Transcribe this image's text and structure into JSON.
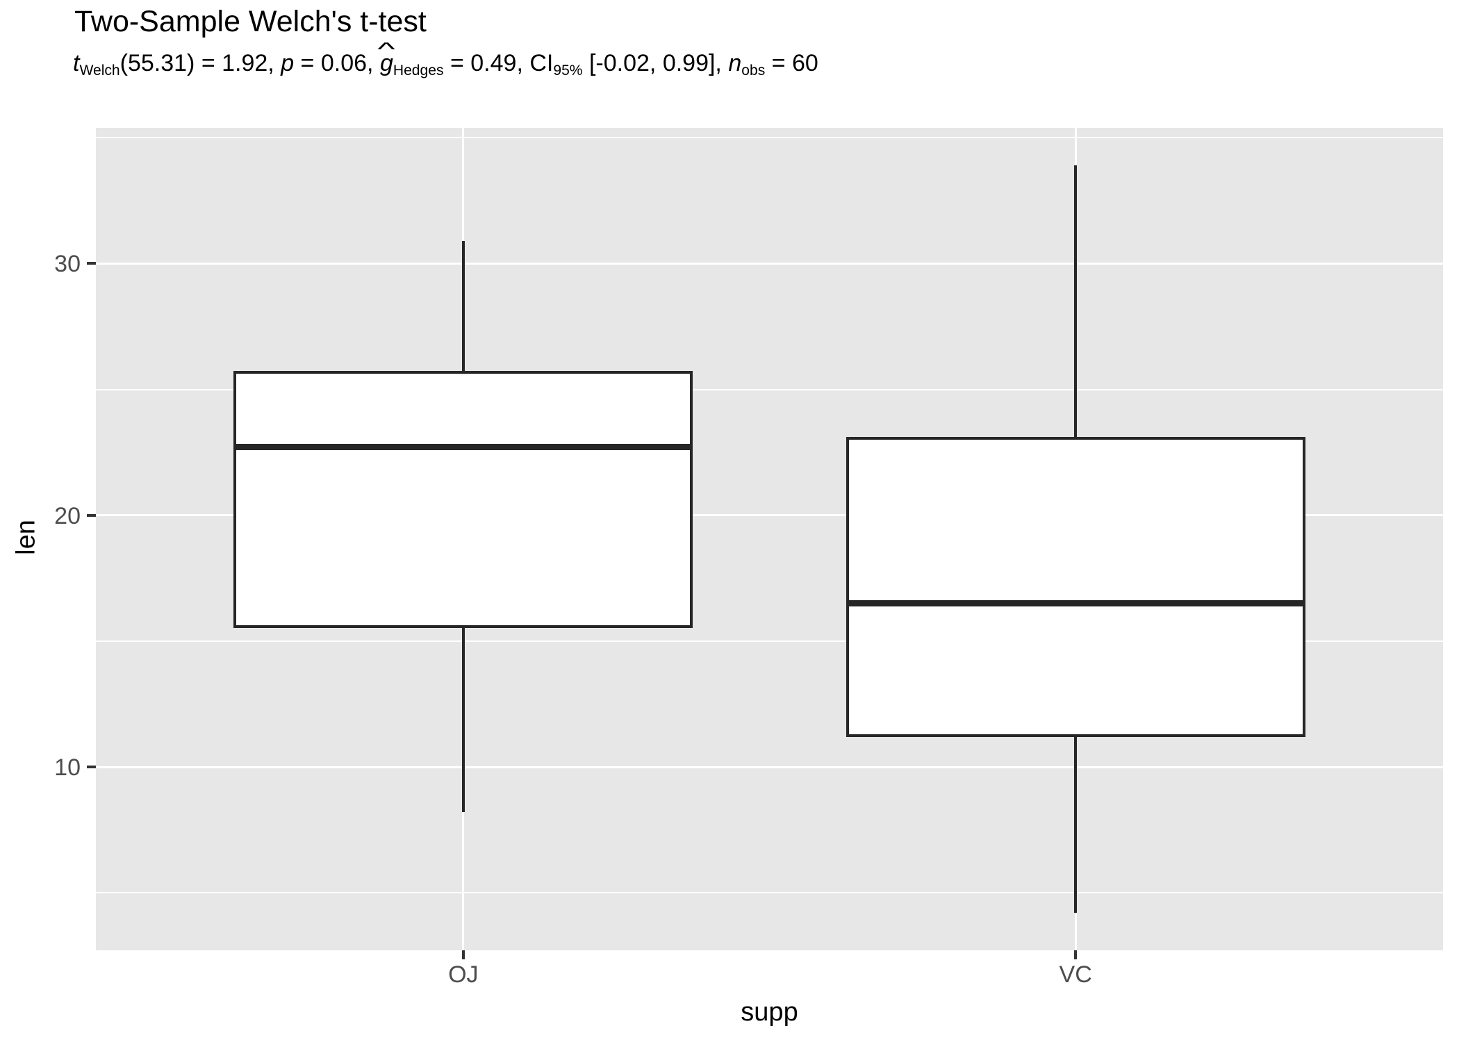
{
  "header": {
    "title": "Two-Sample Welch's t-test"
  },
  "subtitle": {
    "plain": "t Welch(55.31) = 1.92, p = 0.06, g-hat Hedges = 0.49, CI 95% [-0.02, 0.99], n obs = 60",
    "segments": [
      {
        "t": "t",
        "s": "i"
      },
      {
        "t": "Welch",
        "s": "sub"
      },
      {
        "t": "(55.31) = 1.92, ",
        "s": "n"
      },
      {
        "t": "p",
        "s": "i"
      },
      {
        "t": " = 0.06, ",
        "s": "n"
      },
      {
        "t": "g",
        "s": "ihat",
        "hat": "^"
      },
      {
        "t": "Hedges",
        "s": "sub"
      },
      {
        "t": " = 0.49, CI",
        "s": "n"
      },
      {
        "t": "95%",
        "s": "sub"
      },
      {
        "t": " [-0.02, 0.99], ",
        "s": "n"
      },
      {
        "t": "n",
        "s": "i"
      },
      {
        "t": "obs",
        "s": "sub"
      },
      {
        "t": " = 60",
        "s": "n"
      }
    ]
  },
  "stats": {
    "test": "Two-Sample Welch's t-test",
    "t": 1.92,
    "df": 55.31,
    "p": 0.06,
    "g_hedges": 0.49,
    "ci_level": "95%",
    "ci_low": -0.02,
    "ci_high": 0.99,
    "n_obs": 60
  },
  "chart_data": {
    "type": "boxplot",
    "title": "Two-Sample Welch's t-test",
    "xlabel": "supp",
    "ylabel": "len",
    "categories": [
      "OJ",
      "VC"
    ],
    "series": [
      {
        "category": "OJ",
        "whisker_low": 8.2,
        "q1": 15.525,
        "median": 22.7,
        "q3": 25.725,
        "whisker_high": 30.9
      },
      {
        "category": "VC",
        "whisker_low": 4.2,
        "q1": 11.2,
        "median": 16.5,
        "q3": 23.1,
        "whisker_high": 33.9
      }
    ],
    "ylim": [
      2.72,
      35.39
    ],
    "y_major_ticks": [
      30,
      20,
      10
    ],
    "y_minor_gridlines": [
      35,
      25,
      15,
      5
    ],
    "grid": true,
    "legend": false
  },
  "colors": {
    "panel_bg": "#E7E7E7",
    "gridline": "#FFFFFF",
    "box_stroke": "#262626",
    "box_fill": "#FFFFFF",
    "tick_mark": "#333333",
    "tick_label": "#4D4D4D",
    "title_text": "#000000"
  }
}
